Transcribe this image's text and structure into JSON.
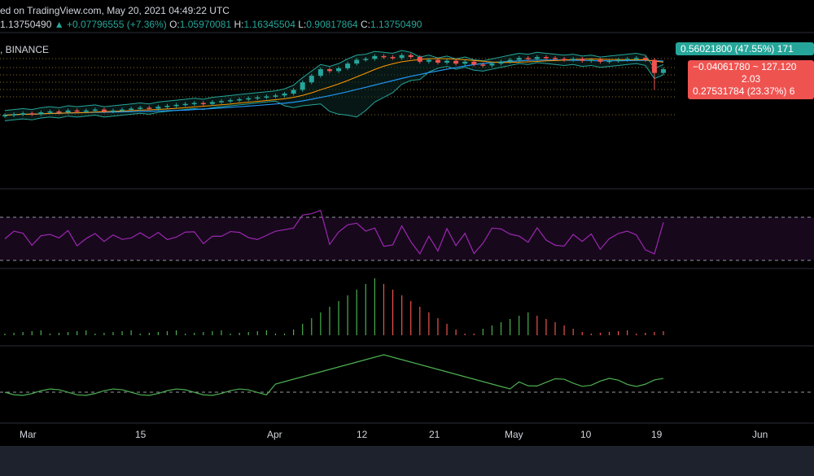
{
  "header": {
    "line1": "ed on TradingView.com, May 20, 2021 04:49:22 UTC",
    "price": "1.13750490",
    "change": "▲ +0.07796555 (+7.36%)",
    "o_label": "O:",
    "o_val": "1.05970081",
    "h_label": "H:",
    "h_val": "1.16345504",
    "l_label": "L:",
    "l_val": "0.90817864",
    "c_label": "C:",
    "c_val": "1.13750490",
    "exchange": ", BINANCE"
  },
  "tags": {
    "green": "0.56021800 (47.55%) 171",
    "red_line1": "−0.04061780 ~ 127.120",
    "red_line2": "2.03",
    "red_line3": "0.27531784 (23.37%) 6"
  },
  "colors": {
    "up": "#26a69a",
    "down": "#ef5350",
    "rsi": "#9c27b0",
    "bb": "#26a69a",
    "ma_blue": "#2196f3",
    "ma_orange": "#ff9800",
    "osc": "#4caf50",
    "background": "#000000"
  },
  "chart_data": {
    "type": "candlestick",
    "x_ticks": [
      "Mar",
      "15",
      "Apr",
      "12",
      "21",
      "May",
      "10",
      "19",
      "Jun"
    ],
    "candles_close": [
      0.93,
      0.94,
      0.95,
      0.94,
      0.96,
      0.97,
      0.96,
      0.98,
      0.97,
      0.98,
      0.99,
      0.97,
      0.98,
      0.99,
      1.0,
      1.01,
      1.0,
      1.02,
      1.03,
      1.04,
      1.05,
      1.06,
      1.05,
      1.07,
      1.08,
      1.09,
      1.1,
      1.11,
      1.12,
      1.13,
      1.14,
      1.16,
      1.2,
      1.28,
      1.35,
      1.42,
      1.4,
      1.43,
      1.48,
      1.52,
      1.53,
      1.56,
      1.55,
      1.54,
      1.57,
      1.55,
      1.5,
      1.52,
      1.49,
      1.51,
      1.48,
      1.5,
      1.47,
      1.46,
      1.48,
      1.5,
      1.52,
      1.54,
      1.53,
      1.55,
      1.54,
      1.53,
      1.52,
      1.53,
      1.51,
      1.52,
      1.5,
      1.51,
      1.52,
      1.53,
      1.54,
      1.52,
      1.38,
      1.42
    ],
    "panels": [
      "price",
      "RSI",
      "histogram",
      "oscillator"
    ]
  }
}
